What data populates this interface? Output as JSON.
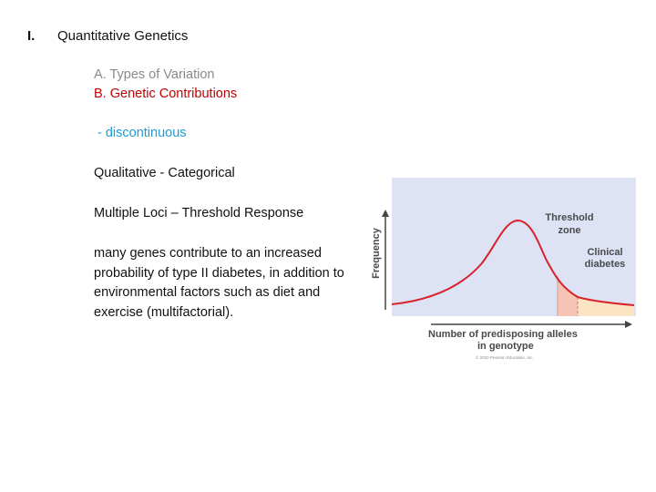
{
  "outline": {
    "numeral": "I.",
    "title": "Quantitative Genetics",
    "item_a": "A.  Types of Variation",
    "item_b": "B. Genetic Contributions",
    "discontinuous": " - discontinuous",
    "qualitative": "Qualitative - Categorical",
    "multiple_loci": "Multiple Loci – Threshold Response",
    "paragraph": "many genes contribute to an increased probability of type II diabetes, in addition to environmental factors such as diet and exercise (multifactorial)."
  },
  "figure": {
    "y_axis_label": "Frequency",
    "x_axis_label_line1": "Number of predisposing alleles",
    "x_axis_label_line2": "in genotype",
    "threshold_label_line1": "Threshold",
    "threshold_label_line2": "zone",
    "clinical_label_line1": "Clinical",
    "clinical_label_line2": "diabetes",
    "copyright": "© 2010 Pearson Education, Inc.",
    "colors": {
      "panel_bg": "#dde3f5",
      "curve": "#d8232a",
      "threshold_fill": "#f5c4b4",
      "clinical_fill": "#fbe3c4",
      "label_text": "#4a4a4a"
    }
  }
}
